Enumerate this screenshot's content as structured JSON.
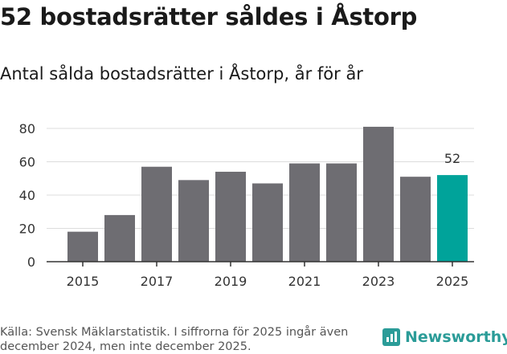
{
  "header": {
    "title": "52 bostadsrätter såldes i Åstorp",
    "subtitle": "Antal sålda bostadsrätter i Åstorp, år för år"
  },
  "footer": {
    "source": "Källa: Svensk Mäklarstatistik. I siffrorna för 2025 ingår även december 2024, men inte december 2025.",
    "brand": "Newsworthy"
  },
  "colors": {
    "bar": "#6e6d72",
    "highlight": "#00a39a",
    "brand": "#2b9c98"
  },
  "chart_data": {
    "type": "bar",
    "title": "Antal sålda bostadsrätter i Åstorp, år för år",
    "categories": [
      "2015",
      "2016",
      "2017",
      "2018",
      "2019",
      "2020",
      "2021",
      "2022",
      "2023",
      "2024",
      "2025"
    ],
    "values": [
      18,
      28,
      57,
      49,
      54,
      47,
      59,
      59,
      81,
      51,
      52
    ],
    "highlight_index": 10,
    "data_labels": [
      {
        "index": 10,
        "text": "52"
      }
    ],
    "x_ticks": [
      "2015",
      "2017",
      "2019",
      "2021",
      "2023",
      "2025"
    ],
    "y_ticks": [
      "0",
      "20",
      "40",
      "60",
      "80"
    ],
    "ylim": [
      0,
      80
    ],
    "xlabel": "",
    "ylabel": "",
    "grid": true
  }
}
